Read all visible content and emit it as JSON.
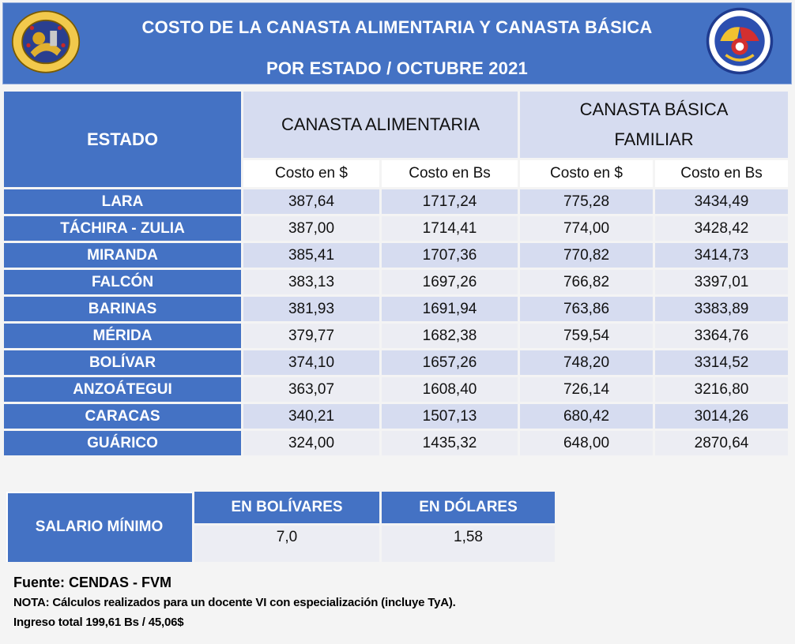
{
  "header": {
    "title_line1": "COSTO DE LA CANASTA ALIMENTARIA Y CANASTA BÁSICA",
    "title_line2": "POR ESTADO / OCTUBRE 2021"
  },
  "colors": {
    "primary_blue": "#4472c4",
    "light_blue": "#d6dcf0",
    "pale": "#ecedf3"
  },
  "table": {
    "estado_header": "ESTADO",
    "group_alimentaria": "CANASTA ALIMENTARIA",
    "group_basica_line1": "CANASTA BÁSICA",
    "group_basica_line2": "FAMILIAR",
    "sub_headers": [
      "Costo en $",
      "Costo en Bs",
      "Costo en $",
      "Costo en Bs"
    ],
    "rows": [
      {
        "estado": "LARA",
        "alim_usd": "387,64",
        "alim_bs": "1717,24",
        "bas_usd": "775,28",
        "bas_bs": "3434,49"
      },
      {
        "estado": "TÁCHIRA - ZULIA",
        "alim_usd": "387,00",
        "alim_bs": "1714,41",
        "bas_usd": "774,00",
        "bas_bs": "3428,42"
      },
      {
        "estado": "MIRANDA",
        "alim_usd": "385,41",
        "alim_bs": "1707,36",
        "bas_usd": "770,82",
        "bas_bs": "3414,73"
      },
      {
        "estado": "FALCÓN",
        "alim_usd": "383,13",
        "alim_bs": "1697,26",
        "bas_usd": "766,82",
        "bas_bs": "3397,01"
      },
      {
        "estado": "BARINAS",
        "alim_usd": "381,93",
        "alim_bs": "1691,94",
        "bas_usd": "763,86",
        "bas_bs": "3383,89"
      },
      {
        "estado": "MÉRIDA",
        "alim_usd": "379,77",
        "alim_bs": "1682,38",
        "bas_usd": "759,54",
        "bas_bs": "3364,76"
      },
      {
        "estado": "BOLÍVAR",
        "alim_usd": "374,10",
        "alim_bs": "1657,26",
        "bas_usd": "748,20",
        "bas_bs": "3314,52"
      },
      {
        "estado": "ANZOÁTEGUI",
        "alim_usd": "363,07",
        "alim_bs": "1608,40",
        "bas_usd": "726,14",
        "bas_bs": "3216,80"
      },
      {
        "estado": "CARACAS",
        "alim_usd": "340,21",
        "alim_bs": "1507,13",
        "bas_usd": "680,42",
        "bas_bs": "3014,26"
      },
      {
        "estado": "GUÁRICO",
        "alim_usd": "324,00",
        "alim_bs": "1435,32",
        "bas_usd": "648,00",
        "bas_bs": "2870,64"
      }
    ]
  },
  "salary": {
    "label": "SALARIO MÍNIMO",
    "header_bs": "EN BOLÍVARES",
    "header_usd": "EN DÓLARES",
    "value_bs": "7,0",
    "value_usd": "1,58"
  },
  "notes": {
    "source": "Fuente: CENDAS - FVM",
    "nota": "NOTA:  Cálculos realizados para un docente VI con especialización (incluye TyA).",
    "ingreso": "Ingreso total 199,61 Bs / 45,06$"
  }
}
